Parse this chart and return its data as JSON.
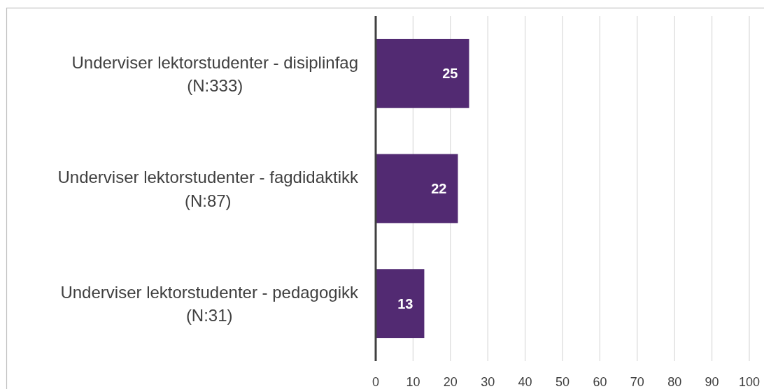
{
  "chart_data": {
    "type": "bar",
    "orientation": "horizontal",
    "categories": [
      "Underviser lektorstudenter - disiplinfag (N:333)",
      "Underviser lektorstudenter - fagdidaktikk (N:87)",
      "Underviser lektorstudenter - pedagogikk (N:31)"
    ],
    "values": [
      25,
      22,
      13
    ],
    "color": "#522a72",
    "xlim": [
      0,
      100
    ],
    "xticks": [
      0,
      10,
      20,
      30,
      40,
      50,
      60,
      70,
      80,
      90,
      100
    ],
    "grid": "x",
    "data_labels": true
  }
}
